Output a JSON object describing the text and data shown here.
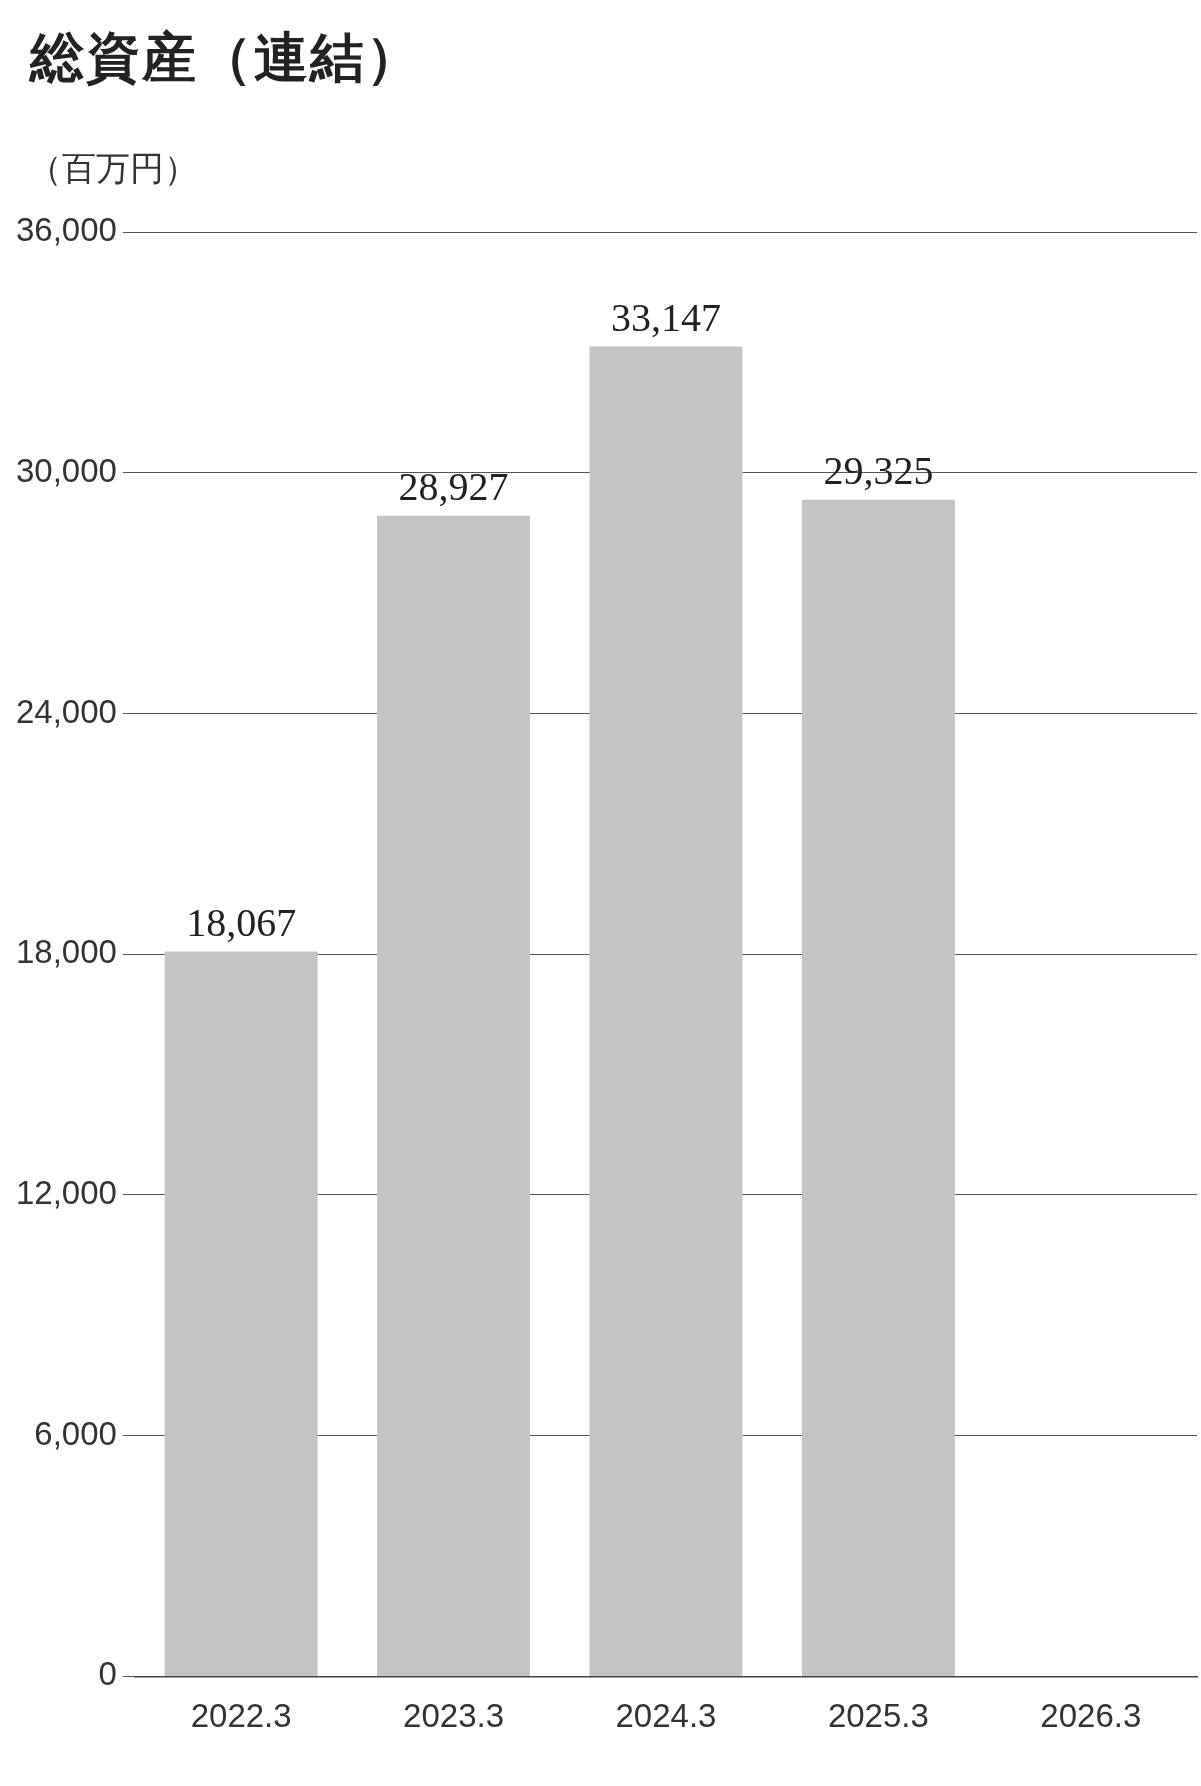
{
  "chart_data": {
    "type": "bar",
    "title": "総資産（連結）",
    "ylabel": "（百万円）",
    "categories": [
      "2022.3",
      "2023.3",
      "2024.3",
      "2025.3",
      "2026.3"
    ],
    "values": [
      18067,
      28927,
      33147,
      29325,
      null
    ],
    "value_labels": [
      "18,067",
      "28,927",
      "33,147",
      "29,325",
      null
    ],
    "color": "#c4c4c4",
    "ylim": [
      0,
      36000
    ],
    "yticks": [
      {
        "value": 0,
        "label": "0"
      },
      {
        "value": 6000,
        "label": "6,000"
      },
      {
        "value": 12000,
        "label": "12,000"
      },
      {
        "value": 18000,
        "label": "18,000"
      },
      {
        "value": 24000,
        "label": "24,000"
      },
      {
        "value": 30000,
        "label": "30,000"
      },
      {
        "value": 36000,
        "label": "36,000"
      }
    ],
    "grid": "y",
    "legend": false
  }
}
